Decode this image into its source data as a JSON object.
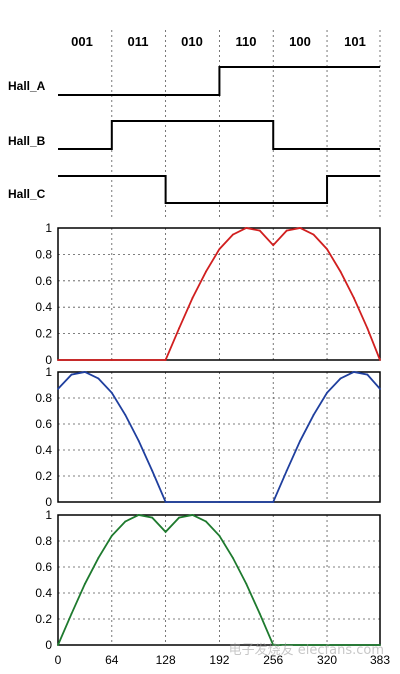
{
  "hall_states": [
    "001",
    "011",
    "010",
    "110",
    "100",
    "101"
  ],
  "chart_data": {
    "type": "line",
    "x_ticks": [
      "0",
      "64",
      "128",
      "192",
      "256",
      "320",
      "383"
    ],
    "xlim": [
      0,
      383
    ],
    "ylim": [
      0,
      1
    ],
    "y_ticks": [
      "0",
      "0.2",
      "0.4",
      "0.6",
      "0.8",
      "1"
    ],
    "grid": true,
    "hall_signals": [
      {
        "name": "Hall_A",
        "levels": [
          0,
          0,
          0,
          1,
          1,
          1
        ]
      },
      {
        "name": "Hall_B",
        "levels": [
          0,
          1,
          1,
          1,
          0,
          0
        ]
      },
      {
        "name": "Hall_C",
        "levels": [
          1,
          1,
          0,
          0,
          0,
          1
        ]
      }
    ],
    "series": [
      {
        "color": "#d11f1f",
        "x": [
          0,
          64,
          128,
          144,
          160,
          176,
          192,
          208,
          224,
          240,
          256,
          272,
          288,
          304,
          320,
          336,
          352,
          368,
          383
        ],
        "y": [
          0,
          0,
          0,
          0.24,
          0.47,
          0.67,
          0.84,
          0.95,
          1,
          0.98,
          0.87,
          0.98,
          1,
          0.95,
          0.84,
          0.67,
          0.47,
          0.24,
          0
        ]
      },
      {
        "color": "#1f3f9e",
        "x": [
          0,
          16,
          32,
          48,
          64,
          80,
          96,
          112,
          128,
          192,
          256,
          272,
          288,
          304,
          320,
          336,
          352,
          368,
          383
        ],
        "y": [
          0.87,
          0.98,
          1,
          0.95,
          0.84,
          0.67,
          0.47,
          0.24,
          0,
          0,
          0,
          0.24,
          0.47,
          0.67,
          0.84,
          0.95,
          1,
          0.98,
          0.87
        ]
      },
      {
        "color": "#1e7a2e",
        "x": [
          0,
          16,
          32,
          48,
          64,
          80,
          96,
          112,
          128,
          144,
          160,
          176,
          192,
          208,
          224,
          240,
          256,
          320,
          383
        ],
        "y": [
          0,
          0.24,
          0.47,
          0.67,
          0.84,
          0.95,
          1,
          0.98,
          0.87,
          0.98,
          1,
          0.95,
          0.84,
          0.67,
          0.47,
          0.24,
          0,
          0,
          0
        ]
      }
    ]
  },
  "watermark": "电子发烧友 elecfans.com"
}
